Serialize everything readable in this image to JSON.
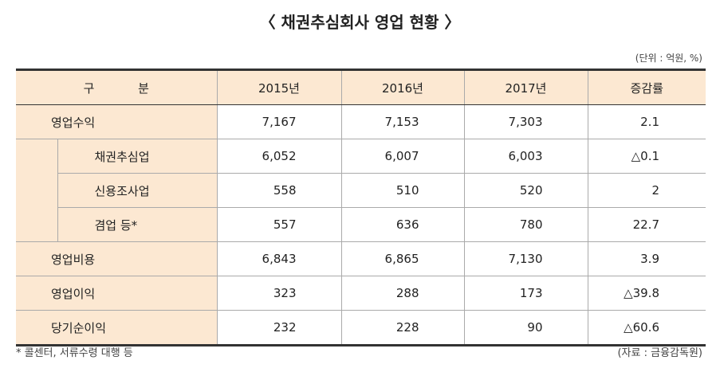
{
  "title": "〈 채권추심회사 영업 현황 〉",
  "unit_note": "(단위 : 억원, %)",
  "table": {
    "header": [
      "구 분",
      "2015년",
      "2016년",
      "2017년",
      "증감률"
    ],
    "rows": [
      {
        "label": "영업수익",
        "values": [
          "7,167",
          "7,153",
          "7,303",
          "2.1"
        ],
        "items": [
          {
            "label": "채권추심업",
            "values": [
              "6,052",
              "6,007",
              "6,003",
              "△0.1"
            ]
          },
          {
            "label": "신용조사업",
            "values": [
              "558",
              "510",
              "520",
              "2"
            ]
          },
          {
            "label": "겸업 등*",
            "values": [
              "557",
              "636",
              "780",
              "22.7"
            ]
          }
        ]
      },
      {
        "label": "영업비용",
        "values": [
          "6,843",
          "6,865",
          "7,130",
          "3.9"
        ]
      },
      {
        "label": "영업이익",
        "values": [
          "323",
          "288",
          "173",
          "△39.8"
        ]
      },
      {
        "label": "당기순이익",
        "values": [
          "232",
          "228",
          "90",
          "△60.6"
        ]
      }
    ]
  },
  "footnote": "* 콜센터, 서류수령 대행 등",
  "source": "(자료 : 금융감독원)"
}
